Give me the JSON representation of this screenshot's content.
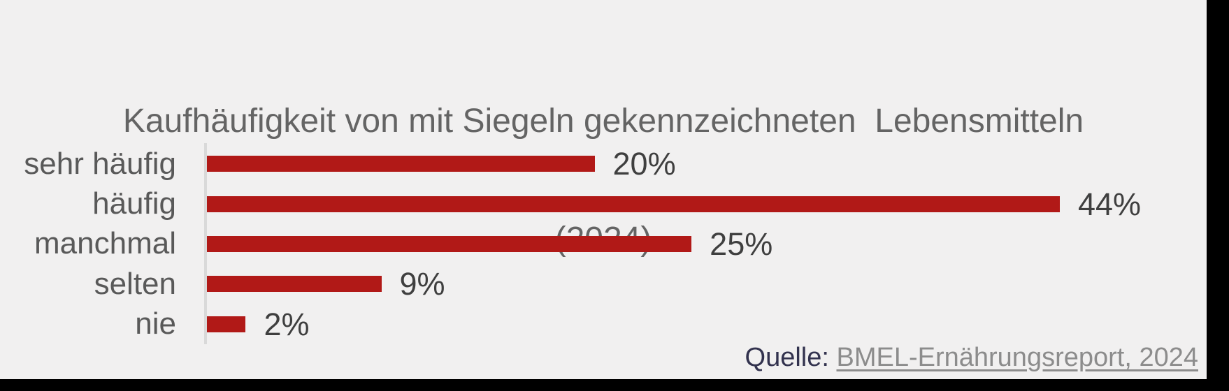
{
  "page": {
    "background_color": "#000000",
    "canvas_color": "#F1F0F0"
  },
  "title": {
    "line1": "Kaufhäufigkeit von mit Siegeln gekennzeichneten  Lebensmitteln",
    "line2": "(2024)"
  },
  "chart_data": {
    "type": "bar",
    "orientation": "horizontal",
    "title": "Kaufhäufigkeit von mit Siegeln gekennzeichneten Lebensmitteln (2024)",
    "categories": [
      "sehr häufig",
      "häufig",
      "manchmal",
      "selten",
      "nie"
    ],
    "values": [
      20,
      44,
      25,
      9,
      2
    ],
    "value_labels": [
      "20%",
      "44%",
      "25%",
      "9%",
      "2%"
    ],
    "unit": "%",
    "xlim": [
      0,
      44
    ],
    "grid": false,
    "legend": false,
    "bar_color": "#B11917",
    "axis_line_color": "#D9D9D9"
  },
  "source": {
    "prefix": "Quelle:",
    "link_text": "BMEL-Ernährungsreport, 2024"
  },
  "colors": {
    "title_text": "#646464",
    "category_text": "#595959",
    "value_text": "#3F3F3F",
    "source_prefix_text": "#32324E",
    "source_link_text": "#8C8C8C"
  }
}
